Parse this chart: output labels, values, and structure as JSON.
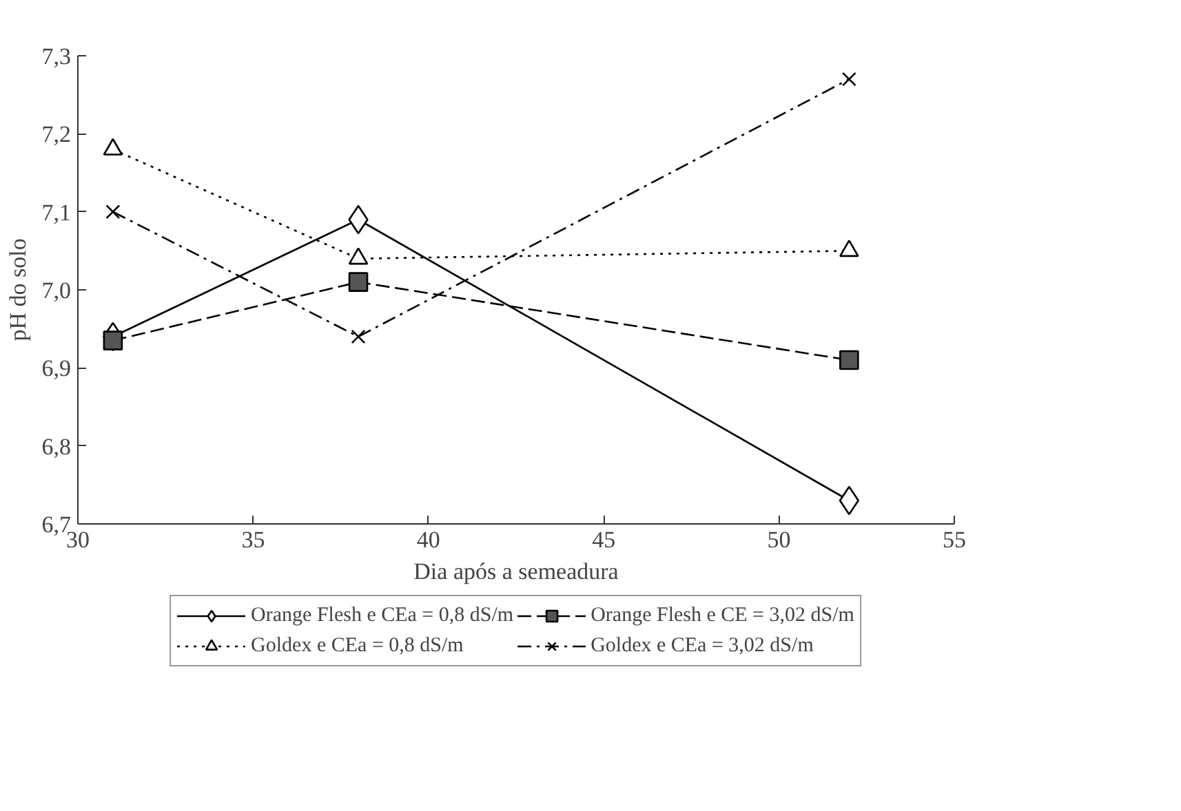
{
  "chart_data": {
    "type": "line",
    "xlabel": "Dia após a semeadura",
    "ylabel": "pH do solo",
    "x": [
      31,
      38,
      52
    ],
    "series": [
      {
        "name": "Orange Flesh e CEa = 0,8 dS/m",
        "color": "#000000",
        "marker": "diamond",
        "line_style": "solid",
        "values": [
          6.94,
          7.09,
          6.73
        ]
      },
      {
        "name": "Orange Flesh e CE = 3,02 dS/m",
        "color": "#000000",
        "marker": "square",
        "line_style": "dashed",
        "values": [
          6.935,
          7.01,
          6.91
        ]
      },
      {
        "name": "Goldex e CEa = 0,8 dS/m",
        "color": "#000000",
        "marker": "triangle",
        "line_style": "dotted",
        "values": [
          7.18,
          7.04,
          7.05
        ]
      },
      {
        "name": "Goldex e CEa = 3,02 dS/m",
        "color": "#000000",
        "marker": "cross",
        "line_style": "dashdot",
        "values": [
          7.1,
          6.94,
          7.27
        ]
      }
    ],
    "xlim": [
      30,
      55
    ],
    "xticks": [
      30,
      35,
      40,
      45,
      50,
      55
    ],
    "ylim": [
      6.7,
      7.3
    ],
    "yticks": [
      {
        "value": 6.7,
        "label": "6,7"
      },
      {
        "value": 6.8,
        "label": "6,8"
      },
      {
        "value": 6.9,
        "label": "6,9"
      },
      {
        "value": 7.0,
        "label": "7,0"
      },
      {
        "value": 7.1,
        "label": "7,1"
      },
      {
        "value": 7.2,
        "label": "7,2"
      },
      {
        "value": 7.3,
        "label": "7,3"
      }
    ],
    "grid": false,
    "legend": "bottom"
  }
}
